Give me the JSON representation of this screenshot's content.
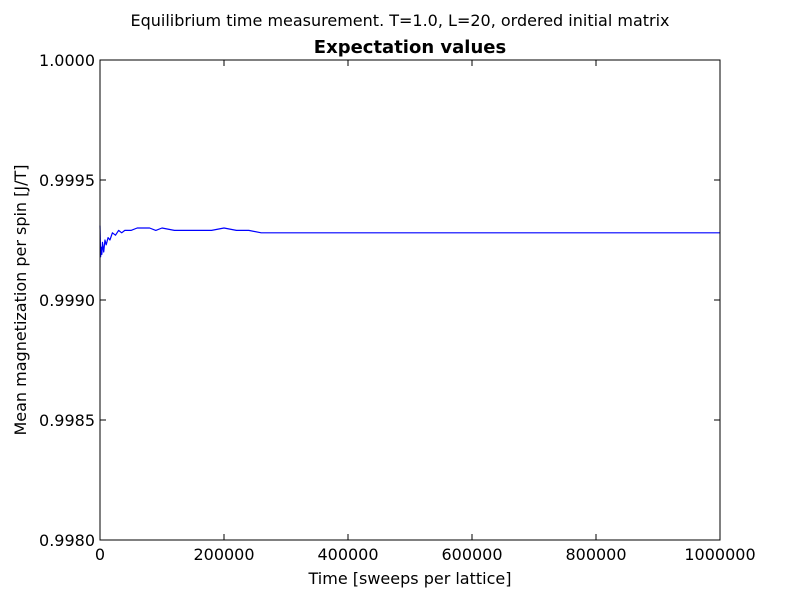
{
  "figure": {
    "suptitle": "Equilibrium time measurement. T=1.0, L=20, ordered initial matrix"
  },
  "chart_data": {
    "type": "line",
    "title": "Expectation values",
    "xlabel": "Time [sweeps per lattice]",
    "ylabel": "Mean magnetization per spin [J/T]",
    "xlim": [
      0,
      1000000
    ],
    "ylim": [
      0.998,
      1.0
    ],
    "x_ticks": [
      0,
      200000,
      400000,
      600000,
      800000,
      1000000
    ],
    "x_tick_labels": [
      "0",
      "200000",
      "400000",
      "600000",
      "800000",
      "1000000"
    ],
    "y_ticks": [
      0.998,
      0.9985,
      0.999,
      0.9995,
      1.0
    ],
    "y_tick_labels": [
      "0.9980",
      "0.9985",
      "0.9990",
      "0.9995",
      "1.0000"
    ],
    "grid": false,
    "legend": "none",
    "series": [
      {
        "color": "#0000ff",
        "x": [
          0,
          1000,
          2000,
          3000,
          4000,
          6000,
          8000,
          10000,
          13000,
          16000,
          20000,
          25000,
          30000,
          35000,
          40000,
          50000,
          60000,
          70000,
          80000,
          90000,
          100000,
          120000,
          140000,
          160000,
          180000,
          200000,
          220000,
          240000,
          260000,
          300000,
          350000,
          400000,
          450000,
          500000,
          550000,
          600000,
          650000,
          700000,
          750000,
          800000,
          850000,
          900000,
          950000,
          1000000
        ],
        "y": [
          0.99931,
          0.99918,
          0.99922,
          0.99919,
          0.99924,
          0.9992,
          0.99925,
          0.99923,
          0.99926,
          0.99925,
          0.99928,
          0.99927,
          0.99929,
          0.99928,
          0.99929,
          0.99929,
          0.9993,
          0.9993,
          0.9993,
          0.99929,
          0.9993,
          0.99929,
          0.99929,
          0.99929,
          0.99929,
          0.9993,
          0.99929,
          0.99929,
          0.99928,
          0.99928,
          0.99928,
          0.99928,
          0.99928,
          0.99928,
          0.99928,
          0.99928,
          0.99928,
          0.99928,
          0.99928,
          0.99928,
          0.99928,
          0.99928,
          0.99928,
          0.99928
        ]
      }
    ]
  }
}
